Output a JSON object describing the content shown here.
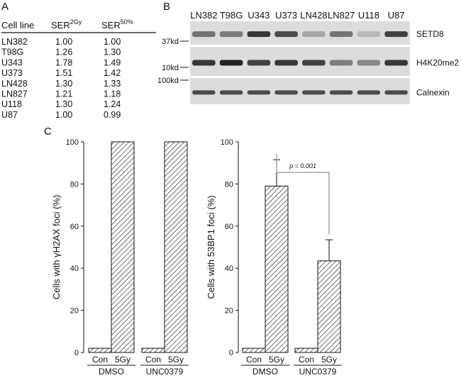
{
  "panel_a": {
    "label": "A",
    "headers": {
      "cell_line": "Cell line",
      "ser2": "SER",
      "ser2_sup": "2Gy",
      "ser50": "SER",
      "ser50_sup": "50%"
    },
    "rows": [
      {
        "cell": "LN382",
        "ser2": "1.00",
        "ser50": "1.00"
      },
      {
        "cell": "T98G",
        "ser2": "1.26",
        "ser50": "1.30"
      },
      {
        "cell": "U343",
        "ser2": "1.78",
        "ser50": "1.49"
      },
      {
        "cell": "U373",
        "ser2": "1.51",
        "ser50": "1.42"
      },
      {
        "cell": "LN428",
        "ser2": "1.30",
        "ser50": "1.33"
      },
      {
        "cell": "LN827",
        "ser2": "1.21",
        "ser50": "1.18"
      },
      {
        "cell": "U118",
        "ser2": "1.30",
        "ser50": "1.24"
      },
      {
        "cell": "U87",
        "ser2": "1.00",
        "ser50": "0.99"
      }
    ]
  },
  "panel_b": {
    "label": "B",
    "lanes": [
      "LN382",
      "T98G",
      "U343",
      "U373",
      "LN428",
      "LN827",
      "U118",
      "U87"
    ],
    "blots": [
      {
        "protein": "SETD8",
        "marker": "37kd",
        "intensity": [
          0.55,
          0.5,
          0.85,
          0.75,
          0.3,
          0.55,
          0.2,
          0.8
        ]
      },
      {
        "protein": "H4K20me2",
        "marker": "10kd",
        "intensity": [
          0.85,
          0.95,
          0.8,
          0.85,
          0.8,
          0.5,
          0.45,
          0.85
        ]
      },
      {
        "protein": "Calnexin",
        "marker": "100kd",
        "intensity": [
          0.75,
          0.75,
          0.75,
          0.75,
          0.75,
          0.75,
          0.75,
          0.75
        ]
      }
    ]
  },
  "panel_c": {
    "label": "C",
    "chart_data": [
      {
        "type": "bar",
        "ylabel_prefix": "Cells with ",
        "ylabel_greek": "γ",
        "ylabel_suffix": "H2AX foci (%)",
        "ylim": [
          0,
          100
        ],
        "yticks": [
          "0",
          "20",
          "40",
          "60",
          "80",
          "100"
        ],
        "groups": [
          "DMSO",
          "UNC0379"
        ],
        "categories": [
          "Con",
          "5Gy"
        ],
        "values": [
          [
            2,
            100
          ],
          [
            2,
            100
          ]
        ]
      },
      {
        "type": "bar",
        "ylabel_prefix": "Cells with 53BP1 foci (%)",
        "ylim": [
          0,
          100
        ],
        "yticks": [
          "0",
          "20",
          "40",
          "60",
          "80",
          "100"
        ],
        "groups": [
          "DMSO",
          "UNC0379"
        ],
        "categories": [
          "Con",
          "5Gy"
        ],
        "values": [
          [
            2,
            79
          ],
          [
            2,
            43.5
          ]
        ],
        "errors": [
          [
            0,
            12.5
          ],
          [
            0,
            10
          ]
        ],
        "annotation": "p = 0.001"
      }
    ]
  }
}
